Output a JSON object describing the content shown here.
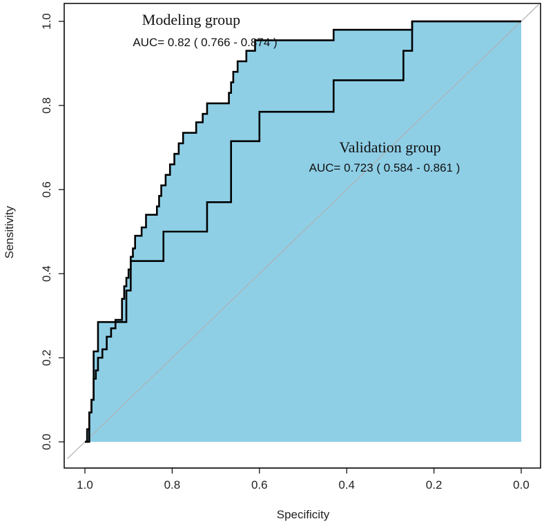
{
  "chart_data": {
    "type": "line",
    "subtype": "roc",
    "xlabel": "Specificity",
    "ylabel": "Sensitivity",
    "xlim": [
      1.0,
      0.0
    ],
    "ylim": [
      0.0,
      1.0
    ],
    "x_ticks": [
      "1.0",
      "0.8",
      "0.6",
      "0.4",
      "0.2",
      "0.0"
    ],
    "x_tick_values": [
      1.0,
      0.8,
      0.6,
      0.4,
      0.2,
      0.0
    ],
    "y_ticks": [
      "0.0",
      "0.2",
      "0.4",
      "0.6",
      "0.8",
      "1.0"
    ],
    "y_tick_values": [
      0.0,
      0.2,
      0.4,
      0.6,
      0.8,
      1.0
    ],
    "fill_color": "#8ecfe6",
    "line_color": "#000000",
    "diagonal_color": "#b0b0b0",
    "grid": false,
    "annotations": {
      "modeling_title": "Modeling group",
      "modeling_auc": "AUC= 0.82 ( 0.766 - 0.874 )",
      "validation_title": "Validation group",
      "validation_auc": "AUC= 0.723 ( 0.584 - 0.861 )"
    },
    "series": [
      {
        "name": "Modeling group",
        "auc": 0.82,
        "ci": [
          0.766,
          0.874
        ],
        "points": [
          [
            1.0,
            0.0
          ],
          [
            0.995,
            0.0
          ],
          [
            0.995,
            0.03
          ],
          [
            0.99,
            0.03
          ],
          [
            0.99,
            0.07
          ],
          [
            0.985,
            0.07
          ],
          [
            0.985,
            0.1
          ],
          [
            0.98,
            0.1
          ],
          [
            0.98,
            0.15
          ],
          [
            0.975,
            0.15
          ],
          [
            0.975,
            0.17
          ],
          [
            0.97,
            0.17
          ],
          [
            0.97,
            0.2
          ],
          [
            0.96,
            0.2
          ],
          [
            0.96,
            0.22
          ],
          [
            0.95,
            0.22
          ],
          [
            0.95,
            0.25
          ],
          [
            0.94,
            0.25
          ],
          [
            0.94,
            0.27
          ],
          [
            0.93,
            0.27
          ],
          [
            0.93,
            0.29
          ],
          [
            0.915,
            0.29
          ],
          [
            0.915,
            0.34
          ],
          [
            0.91,
            0.34
          ],
          [
            0.91,
            0.37
          ],
          [
            0.905,
            0.37
          ],
          [
            0.905,
            0.39
          ],
          [
            0.9,
            0.39
          ],
          [
            0.9,
            0.41
          ],
          [
            0.895,
            0.41
          ],
          [
            0.895,
            0.44
          ],
          [
            0.89,
            0.44
          ],
          [
            0.89,
            0.46
          ],
          [
            0.885,
            0.46
          ],
          [
            0.885,
            0.49
          ],
          [
            0.87,
            0.49
          ],
          [
            0.87,
            0.51
          ],
          [
            0.86,
            0.51
          ],
          [
            0.86,
            0.54
          ],
          [
            0.835,
            0.54
          ],
          [
            0.835,
            0.56
          ],
          [
            0.83,
            0.56
          ],
          [
            0.83,
            0.585
          ],
          [
            0.825,
            0.585
          ],
          [
            0.825,
            0.61
          ],
          [
            0.815,
            0.61
          ],
          [
            0.815,
            0.635
          ],
          [
            0.805,
            0.635
          ],
          [
            0.805,
            0.66
          ],
          [
            0.795,
            0.66
          ],
          [
            0.795,
            0.685
          ],
          [
            0.785,
            0.685
          ],
          [
            0.785,
            0.71
          ],
          [
            0.775,
            0.71
          ],
          [
            0.775,
            0.735
          ],
          [
            0.745,
            0.735
          ],
          [
            0.745,
            0.76
          ],
          [
            0.73,
            0.76
          ],
          [
            0.73,
            0.78
          ],
          [
            0.72,
            0.78
          ],
          [
            0.72,
            0.805
          ],
          [
            0.67,
            0.805
          ],
          [
            0.67,
            0.83
          ],
          [
            0.665,
            0.83
          ],
          [
            0.665,
            0.855
          ],
          [
            0.66,
            0.855
          ],
          [
            0.66,
            0.88
          ],
          [
            0.65,
            0.88
          ],
          [
            0.65,
            0.905
          ],
          [
            0.63,
            0.905
          ],
          [
            0.63,
            0.93
          ],
          [
            0.61,
            0.93
          ],
          [
            0.61,
            0.955
          ],
          [
            0.43,
            0.955
          ],
          [
            0.43,
            0.98
          ],
          [
            0.25,
            0.98
          ],
          [
            0.25,
            1.0
          ],
          [
            0.0,
            1.0
          ]
        ]
      },
      {
        "name": "Validation group",
        "auc": 0.723,
        "ci": [
          0.584,
          0.861
        ],
        "points": [
          [
            1.0,
            0.0
          ],
          [
            0.99,
            0.0
          ],
          [
            0.99,
            0.07
          ],
          [
            0.985,
            0.07
          ],
          [
            0.985,
            0.1
          ],
          [
            0.98,
            0.1
          ],
          [
            0.98,
            0.215
          ],
          [
            0.97,
            0.215
          ],
          [
            0.97,
            0.285
          ],
          [
            0.905,
            0.285
          ],
          [
            0.905,
            0.36
          ],
          [
            0.895,
            0.36
          ],
          [
            0.895,
            0.43
          ],
          [
            0.82,
            0.43
          ],
          [
            0.82,
            0.5
          ],
          [
            0.72,
            0.5
          ],
          [
            0.72,
            0.57
          ],
          [
            0.665,
            0.57
          ],
          [
            0.665,
            0.715
          ],
          [
            0.6,
            0.715
          ],
          [
            0.6,
            0.785
          ],
          [
            0.43,
            0.785
          ],
          [
            0.43,
            0.86
          ],
          [
            0.27,
            0.86
          ],
          [
            0.27,
            0.93
          ],
          [
            0.25,
            0.93
          ],
          [
            0.25,
            1.0
          ],
          [
            0.0,
            1.0
          ]
        ]
      }
    ]
  }
}
